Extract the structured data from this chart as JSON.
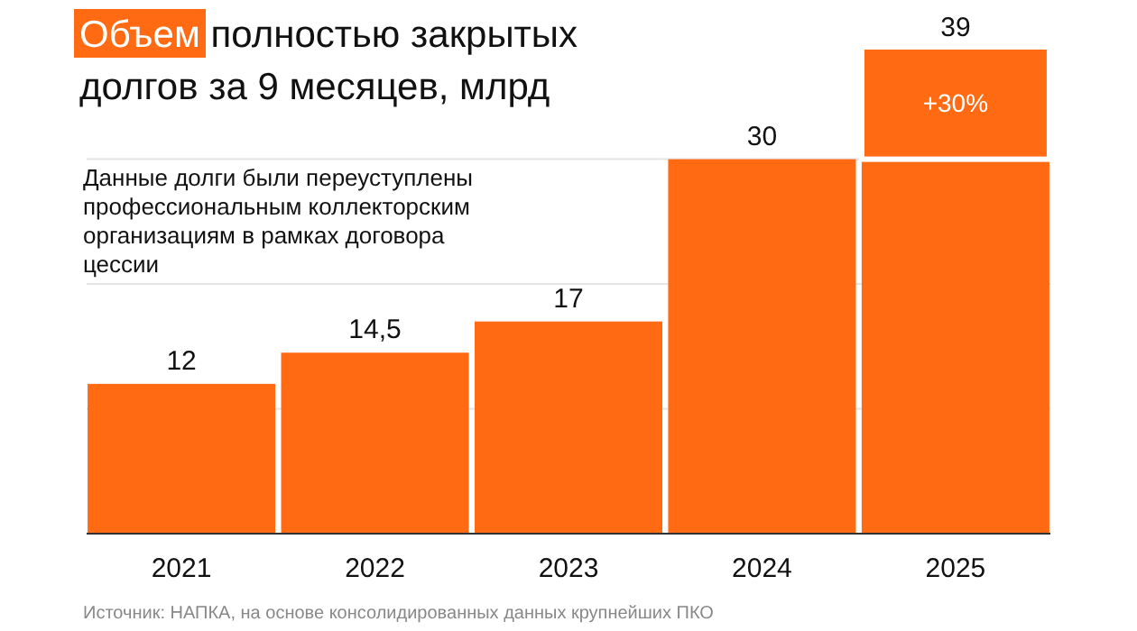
{
  "chart_data": {
    "type": "bar",
    "title": "Объем полностью закрытых долгов за 9 месяцев, млрд",
    "categories": [
      "2021",
      "2022",
      "2023",
      "2024",
      "2025"
    ],
    "stacked": true,
    "series": [
      {
        "color": "#ff6a13",
        "values": [
          12,
          14.5,
          17,
          30,
          30
        ],
        "value_labels": [
          "12",
          "14,5",
          "17",
          "30",
          null
        ]
      },
      {
        "color": "#ff6a13",
        "values": [
          null,
          null,
          null,
          null,
          9
        ]
      }
    ],
    "totals": [
      null,
      null,
      null,
      null,
      "39"
    ],
    "yticks": [
      {
        "value": 0,
        "label": null
      },
      {
        "value": 10,
        "label": null
      },
      {
        "value": 20,
        "label": null
      },
      {
        "value": 30,
        "label": null
      }
    ],
    "grid": "y",
    "tick_labels": "x",
    "annotations": [
      "+30%",
      "Данные долги были переуступлены профессиональным коллекторским организациям в рамках договора цессии",
      "Источник: НАПКА, на основе консолидированных данных крупнейших ПКО"
    ]
  }
}
